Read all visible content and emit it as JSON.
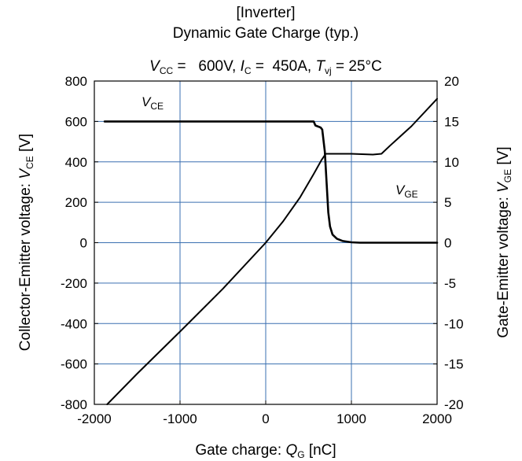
{
  "chart_data": {
    "type": "line",
    "title": "[Inverter]",
    "subtitle": "Dynamic Gate Charge (typ.)",
    "conditions": {
      "vcc_symbol": "V",
      "vcc_sub": "CC",
      "vcc_value": " =   600V,",
      "ic_symbol": "I",
      "ic_sub": "C",
      "ic_value": " =  450A,",
      "tvj_symbol": "T",
      "tvj_sub": "vj",
      "tvj_value": " = 25°C"
    },
    "xlabel": {
      "text": "Gate charge: ",
      "symbol": "Q",
      "sub": "G",
      "unit": " [nC]"
    },
    "ylabel_left": {
      "text": "Collector-Emitter voltage: ",
      "symbol": "V",
      "sub": "CE",
      "unit": " [V]"
    },
    "ylabel_right": {
      "text": "Gate-Emitter voltage: ",
      "symbol": "V",
      "sub": "GE",
      "unit": " [V]"
    },
    "xlim": [
      -2000,
      2000
    ],
    "ylim_left": [
      -800,
      800
    ],
    "ylim_right": [
      -20,
      20
    ],
    "x_ticks": [
      -2000,
      -1000,
      0,
      1000,
      2000
    ],
    "y_left_ticks": [
      -800,
      -600,
      -400,
      -200,
      0,
      200,
      400,
      600,
      800
    ],
    "y_right_ticks": [
      -20,
      -15,
      -10,
      -5,
      0,
      5,
      10,
      15,
      20
    ],
    "grid": true,
    "grid_color": "#3a6fb0",
    "series": [
      {
        "name_symbol": "V",
        "name_sub": "CE",
        "axis": "left",
        "points": [
          [
            -1880,
            600
          ],
          [
            560,
            600
          ],
          [
            580,
            580
          ],
          [
            640,
            570
          ],
          [
            660,
            560
          ],
          [
            690,
            450
          ],
          [
            710,
            300
          ],
          [
            730,
            150
          ],
          [
            750,
            80
          ],
          [
            780,
            40
          ],
          [
            830,
            20
          ],
          [
            900,
            8
          ],
          [
            1000,
            2
          ],
          [
            1100,
            0
          ],
          [
            2000,
            0
          ]
        ]
      },
      {
        "name_symbol": "V",
        "name_sub": "GE",
        "axis": "right",
        "points": [
          [
            -1850,
            -20
          ],
          [
            -1500,
            -16.2
          ],
          [
            -1000,
            -11
          ],
          [
            -500,
            -5.7
          ],
          [
            0,
            0
          ],
          [
            200,
            2.6
          ],
          [
            400,
            5.6
          ],
          [
            560,
            8.5
          ],
          [
            650,
            10.2
          ],
          [
            700,
            11
          ],
          [
            1000,
            11
          ],
          [
            1250,
            10.9
          ],
          [
            1350,
            11
          ],
          [
            1450,
            12
          ],
          [
            1700,
            14.4
          ],
          [
            2000,
            17.8
          ]
        ]
      }
    ]
  }
}
